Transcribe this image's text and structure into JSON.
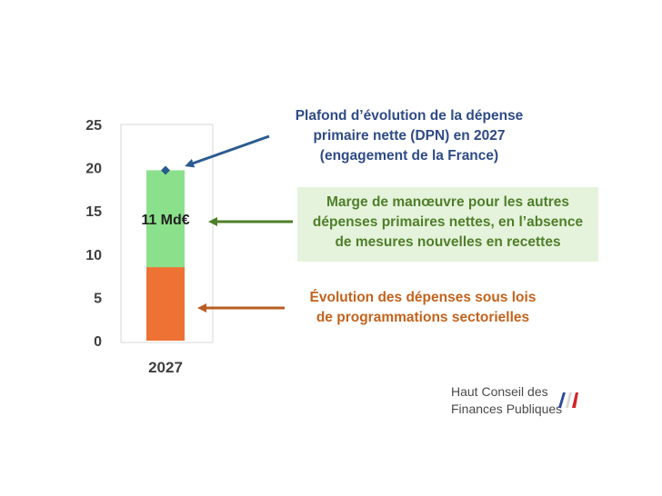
{
  "chart_data": {
    "type": "bar",
    "stacked": true,
    "categories": [
      "2027"
    ],
    "series": [
      {
        "values": [
          8.5
        ],
        "color": "#ed7233"
      },
      {
        "values": [
          11.2
        ],
        "color": "#8be08b",
        "data_label": "11 Md€"
      }
    ],
    "marker": {
      "x": "2027",
      "y": 19.7,
      "color": "#2a5b8f"
    },
    "ylim": [
      0,
      25
    ],
    "yticks": [
      0,
      5,
      10,
      15,
      20,
      25
    ],
    "grid": false,
    "title": "",
    "xlabel": "",
    "ylabel": ""
  },
  "annotations": {
    "dpn": [
      "Plafond d’évolution de la dépense",
      "primaire nette (DPN) en 2027",
      "(engagement de la France)"
    ],
    "marge": [
      "Marge de manœuvre pour les autres",
      "dépenses primaires nettes, en l’absence",
      "de mesures nouvelles en recettes"
    ],
    "evolution": [
      "Évolution des dépenses sous lois",
      "de programmations sectorielles"
    ]
  },
  "colors": {
    "dpn_arrow": "#2a5b8f",
    "marge_arrow": "#4e7f2a",
    "evolution_arrow": "#b85e23"
  },
  "logo": {
    "line1": "Haut Conseil des",
    "line2": "Finances Publiques"
  }
}
